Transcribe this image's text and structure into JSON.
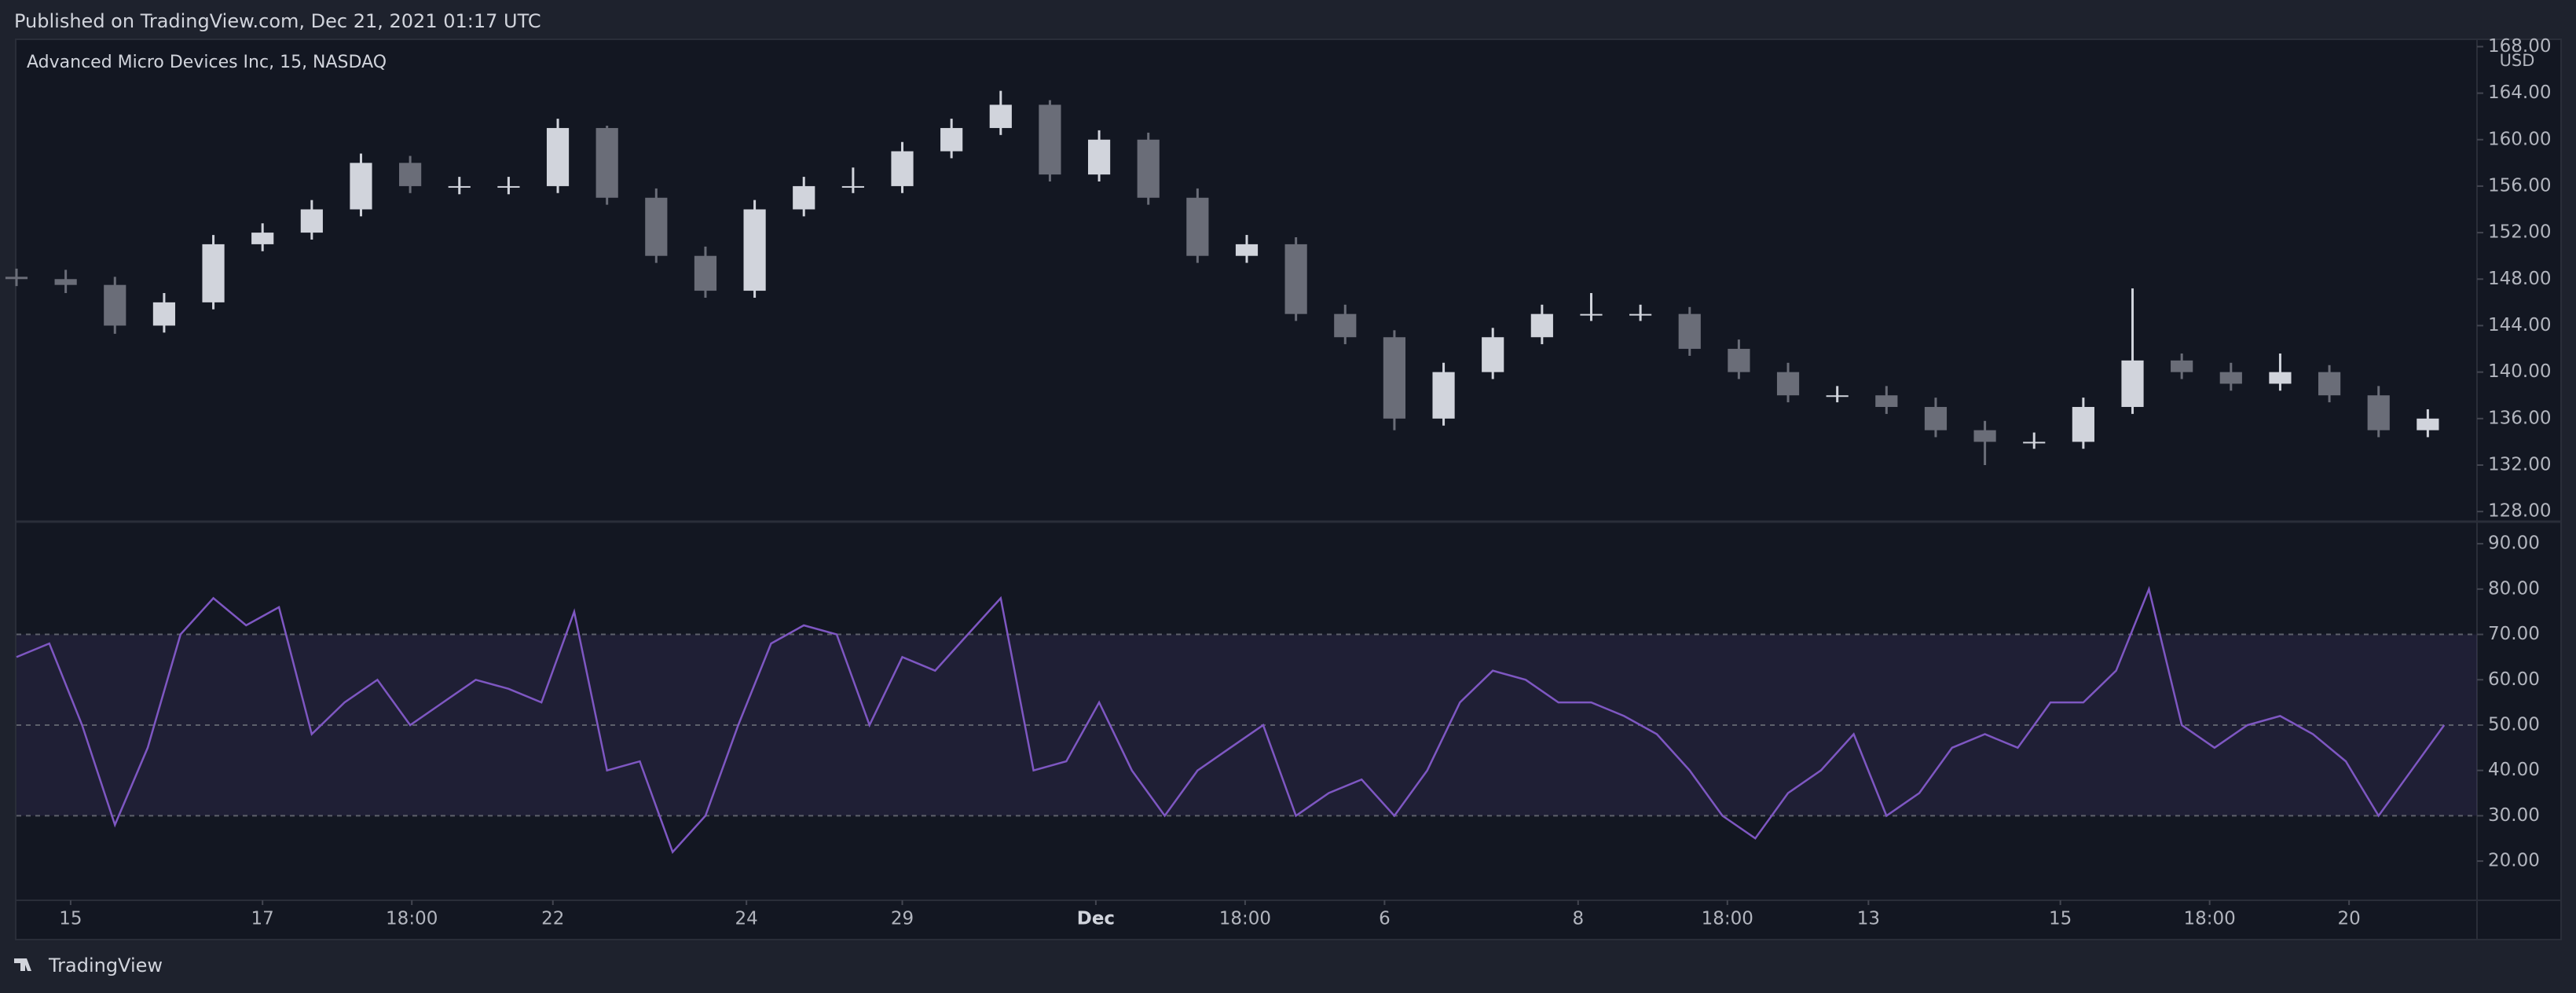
{
  "header": "Published on TradingView.com, Dec 21, 2021 01:17 UTC",
  "footer": "TradingView",
  "chart_data": [
    {
      "type": "candlestick",
      "title": "Advanced Micro Devices Inc, 15, NASDAQ",
      "currency": "USD",
      "up_color": "#d1d4dc",
      "down_color": "#6a6d78",
      "x": [
        0,
        3,
        6,
        9,
        12,
        15,
        18,
        21,
        24,
        27,
        30,
        33,
        36,
        39,
        42,
        45,
        48,
        51,
        54,
        57,
        60,
        63,
        66,
        69,
        72,
        75,
        78,
        81,
        84,
        87,
        90,
        93,
        96,
        99,
        102,
        105,
        108,
        111,
        114,
        117,
        120,
        123,
        126,
        129,
        132,
        135,
        138,
        141,
        144,
        147
      ],
      "open": [
        148.2,
        148,
        147.5,
        144,
        146,
        151,
        152,
        154,
        158,
        156,
        156,
        156,
        161,
        155,
        150,
        147,
        154,
        156,
        156,
        159,
        161,
        163,
        157,
        160,
        155,
        150,
        151,
        145,
        143,
        136,
        140,
        143,
        145,
        145,
        145,
        142,
        140,
        138,
        138,
        137,
        135,
        134,
        134,
        137,
        141,
        140,
        139,
        140,
        138,
        135
      ],
      "close": [
        148,
        147.5,
        144,
        146,
        151,
        152,
        154,
        158,
        156,
        156,
        156,
        161,
        155,
        150,
        147,
        154,
        156,
        156,
        159,
        161,
        163,
        157,
        160,
        155,
        150,
        151,
        145,
        143,
        136,
        140,
        143,
        145,
        145,
        145,
        142,
        140,
        138,
        138,
        137,
        135,
        134,
        134,
        137,
        141,
        140,
        139,
        140,
        138,
        135,
        136
      ],
      "high": [
        148.9,
        148.8,
        148.2,
        146.8,
        151.8,
        152.8,
        154.8,
        158.8,
        158.6,
        156.8,
        156.8,
        161.8,
        161.2,
        155.8,
        150.8,
        154.8,
        156.8,
        157.6,
        159.8,
        161.8,
        164.2,
        163.4,
        160.8,
        160.6,
        155.8,
        151.8,
        151.6,
        145.8,
        143.6,
        140.8,
        143.8,
        145.8,
        146.8,
        145.8,
        145.6,
        142.8,
        140.8,
        138.8,
        138.8,
        137.8,
        135.8,
        134.8,
        137.8,
        147.2,
        141.6,
        140.8,
        141.6,
        140.6,
        138.8,
        136.8
      ],
      "low": [
        147.4,
        146.8,
        143.3,
        143.4,
        145.4,
        150.4,
        151.4,
        153.4,
        155.4,
        155.3,
        155.3,
        155.4,
        154.4,
        149.4,
        146.4,
        146.4,
        153.4,
        155.4,
        155.4,
        158.4,
        160.4,
        156.4,
        156.4,
        154.4,
        149.4,
        149.4,
        144.4,
        142.4,
        135,
        135.4,
        139.4,
        142.4,
        144.4,
        144.4,
        141.4,
        139.4,
        137.4,
        137.4,
        136.4,
        134.4,
        132,
        133.4,
        133.4,
        136.4,
        139.4,
        138.4,
        138.4,
        137.4,
        134.4,
        134.4
      ],
      "xlim": [
        0,
        150
      ],
      "xticks": [
        {
          "value": 3.3,
          "label": "15"
        },
        {
          "value": 15,
          "label": "17"
        },
        {
          "value": 24.1,
          "label": "18:00"
        },
        {
          "value": 32.7,
          "label": "22"
        },
        {
          "value": 44.5,
          "label": "24"
        },
        {
          "value": 54,
          "label": "29"
        },
        {
          "value": 65.8,
          "label": "Dec"
        },
        {
          "value": 74.9,
          "label": "18:00"
        },
        {
          "value": 83.4,
          "label": "6"
        },
        {
          "value": 95.2,
          "label": "8"
        },
        {
          "value": 104.3,
          "label": "18:00"
        },
        {
          "value": 112.9,
          "label": "13"
        },
        {
          "value": 124.6,
          "label": "15"
        },
        {
          "value": 133.7,
          "label": "18:00"
        },
        {
          "value": 142.2,
          "label": "20"
        }
      ],
      "ylim": [
        127.2,
        168.5
      ],
      "yticks": [
        {
          "value": 128,
          "label": "128.00"
        },
        {
          "value": 132,
          "label": "132.00"
        },
        {
          "value": 136,
          "label": "136.00"
        },
        {
          "value": 140,
          "label": "140.00"
        },
        {
          "value": 144,
          "label": "144.00"
        },
        {
          "value": 148,
          "label": "148.00"
        },
        {
          "value": 152,
          "label": "152.00"
        },
        {
          "value": 156,
          "label": "156.00"
        },
        {
          "value": 160,
          "label": "160.00"
        },
        {
          "value": 164,
          "label": "164.00"
        },
        {
          "value": 168,
          "label": "168.00"
        }
      ]
    },
    {
      "type": "line",
      "color": "#7e57c2",
      "band": [
        30,
        70
      ],
      "midline": 50,
      "x": [
        0,
        2,
        4,
        6,
        8,
        10,
        12,
        14,
        16,
        18,
        20,
        22,
        24,
        26,
        28,
        30,
        32,
        34,
        36,
        38,
        40,
        42,
        44,
        46,
        48,
        50,
        52,
        54,
        56,
        58,
        60,
        62,
        64,
        66,
        68,
        70,
        72,
        74,
        76,
        78,
        80,
        82,
        84,
        86,
        88,
        90,
        92,
        94,
        96,
        98,
        100,
        102,
        104,
        106,
        108,
        110,
        112,
        114,
        116,
        118,
        120,
        122,
        124,
        126,
        128,
        130,
        132,
        134,
        136,
        138,
        140,
        142,
        144,
        146,
        148
      ],
      "values": [
        65,
        68,
        50,
        28,
        45,
        70,
        78,
        72,
        76,
        48,
        55,
        60,
        50,
        55,
        60,
        58,
        55,
        75,
        40,
        42,
        22,
        30,
        50,
        68,
        72,
        70,
        50,
        65,
        62,
        70,
        78,
        40,
        42,
        55,
        40,
        30,
        40,
        45,
        50,
        30,
        35,
        38,
        30,
        40,
        55,
        62,
        60,
        55,
        55,
        52,
        48,
        40,
        30,
        25,
        35,
        40,
        48,
        30,
        35,
        45,
        48,
        45,
        55,
        55,
        62,
        80,
        50,
        45,
        50,
        52,
        48,
        42,
        30,
        40,
        50
      ],
      "xlim": [
        0,
        150
      ],
      "ylim": [
        11.7,
        94.7
      ],
      "yticks": [
        {
          "value": 20,
          "label": "20.00"
        },
        {
          "value": 30,
          "label": "30.00"
        },
        {
          "value": 40,
          "label": "40.00"
        },
        {
          "value": 50,
          "label": "50.00"
        },
        {
          "value": 60,
          "label": "60.00"
        },
        {
          "value": 70,
          "label": "70.00"
        },
        {
          "value": 80,
          "label": "80.00"
        },
        {
          "value": 90,
          "label": "90.00"
        }
      ]
    }
  ]
}
